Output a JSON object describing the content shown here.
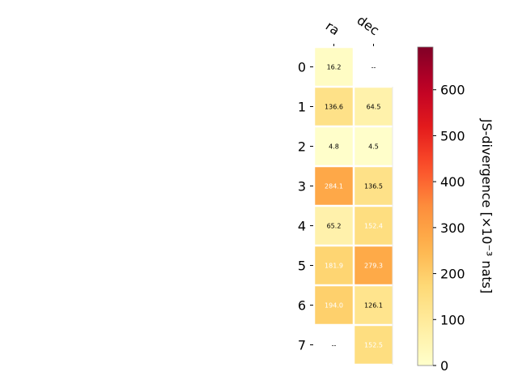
{
  "chart_data": {
    "type": "heatmap",
    "title": "",
    "columns": [
      "ra",
      "dec"
    ],
    "rows": [
      "0",
      "1",
      "2",
      "3",
      "4",
      "5",
      "6",
      "7"
    ],
    "values": [
      [
        16.2,
        null
      ],
      [
        136.6,
        64.5
      ],
      [
        4.8,
        4.5
      ],
      [
        284.1,
        136.5
      ],
      [
        65.2,
        152.4
      ],
      [
        181.9,
        279.3
      ],
      [
        194.0,
        126.1
      ],
      [
        null,
        152.5
      ]
    ],
    "cell_labels": [
      [
        "16.2",
        "--"
      ],
      [
        "136.6",
        "64.5"
      ],
      [
        "4.8",
        "4.5"
      ],
      [
        "284.1",
        "136.5"
      ],
      [
        "65.2",
        "152.4"
      ],
      [
        "181.9",
        "279.3"
      ],
      [
        "194.0",
        "126.1"
      ],
      [
        "--",
        "152.5"
      ]
    ],
    "colorbar": {
      "label": "JS-divergence [×10⁻³ nats]",
      "min": 0,
      "max": 693,
      "ticks": [
        0,
        100,
        200,
        300,
        400,
        500,
        600
      ],
      "colormap": "YlOrRd"
    }
  }
}
